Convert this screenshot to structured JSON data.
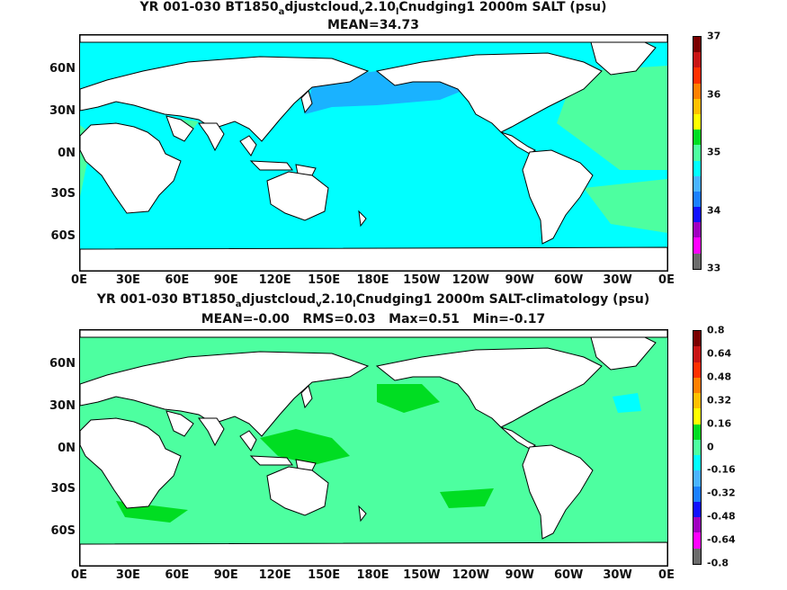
{
  "panels": [
    {
      "title_parts": [
        "YR 001-030 BT1850",
        "a",
        "djustcloud",
        "v",
        "2.10",
        "l",
        "Cnudging1 2000m SALT (psu)"
      ],
      "stats": "MEAN=34.73",
      "x_ticks": [
        "0E",
        "30E",
        "60E",
        "90E",
        "120E",
        "150E",
        "180E",
        "150W",
        "120W",
        "90W",
        "60W",
        "30W",
        "0E"
      ],
      "y_ticks": [
        "60N",
        "30N",
        "0N",
        "30S",
        "60S"
      ],
      "colorbar": {
        "colors": [
          "#6b6b6b",
          "#ff00ff",
          "#a000c0",
          "#1010ff",
          "#1a80ff",
          "#4ab4ff",
          "#00ffff",
          "#4dffa0",
          "#00dd22",
          "#ffff00",
          "#ffc000",
          "#ff8000",
          "#ff3000",
          "#c81414",
          "#7a0000"
        ],
        "labels": [
          "33",
          "34",
          "35",
          "36",
          "37"
        ]
      },
      "fill_colors": {
        "ocean_main": "#00ffff",
        "ocean_warm": "#4dffa0",
        "ocean_fresh": "#1ab2ff",
        "land": "#ffffff"
      }
    },
    {
      "title_parts": [
        "YR 001-030 BT1850",
        "a",
        "djustcloud",
        "v",
        "2.10",
        "l",
        "Cnudging1 2000m SALT-climatology (psu)"
      ],
      "stats": "MEAN=-0.00   RMS=0.03   Max=0.51   Min=-0.17",
      "x_ticks": [
        "0E",
        "30E",
        "60E",
        "90E",
        "120E",
        "150E",
        "180E",
        "150W",
        "120W",
        "90W",
        "60W",
        "30W",
        "0E"
      ],
      "y_ticks": [
        "60N",
        "30N",
        "0N",
        "30S",
        "60S"
      ],
      "colorbar": {
        "colors": [
          "#6b6b6b",
          "#ff00ff",
          "#a000c0",
          "#1010ff",
          "#1a80ff",
          "#4ab4ff",
          "#00ffff",
          "#4dffa0",
          "#00dd22",
          "#ffff00",
          "#ffc000",
          "#ff8000",
          "#ff3000",
          "#c81414",
          "#7a0000"
        ],
        "labels": [
          "0.8",
          "0.64",
          "0.48",
          "0.32",
          "0.16",
          "0",
          "-0.16",
          "-0.32",
          "-0.48",
          "-0.64",
          "-0.8"
        ]
      },
      "fill_colors": {
        "ocean_main": "#4dffa0",
        "ocean_warm": "#00dd22",
        "ocean_fresh": "#00ffff",
        "land": "#ffffff"
      }
    }
  ]
}
